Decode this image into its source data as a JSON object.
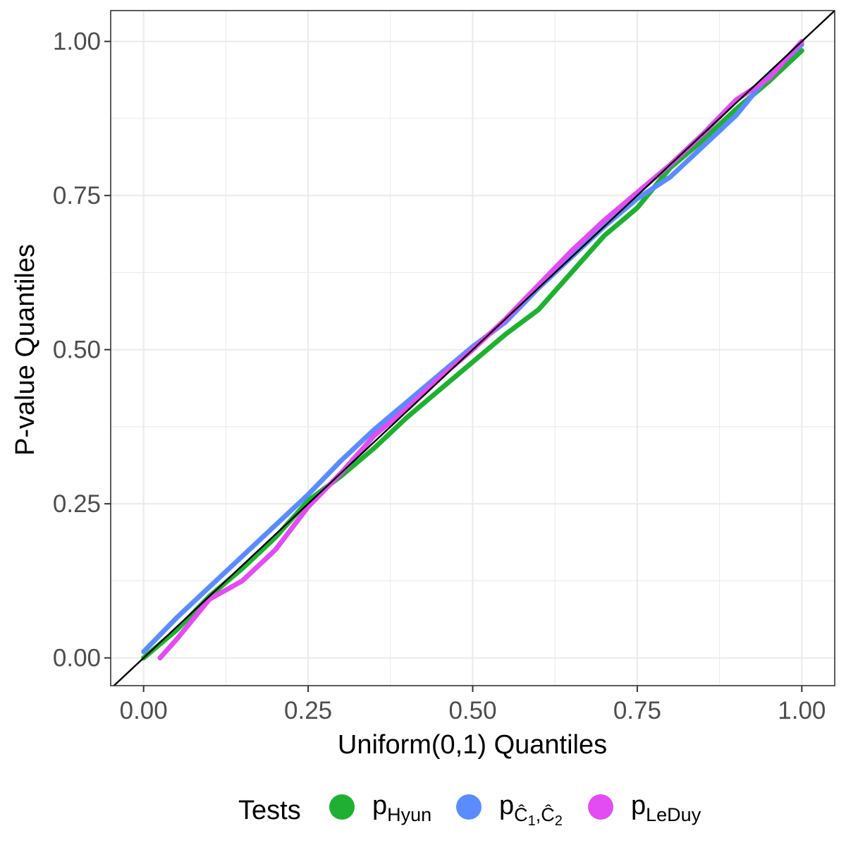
{
  "chart_data": {
    "type": "line",
    "title": "",
    "xlabel": "Uniform(0,1) Quantiles",
    "ylabel": "P-value Quantiles",
    "xlim": [
      -0.05,
      1.05
    ],
    "ylim": [
      -0.045,
      1.05
    ],
    "x_ticks": [
      "0.00",
      "0.25",
      "0.50",
      "0.75",
      "1.00"
    ],
    "y_ticks": [
      "0.00",
      "0.25",
      "0.50",
      "0.75",
      "1.00"
    ],
    "grid": true,
    "reference_line": "y = x",
    "legend": {
      "title": "Tests",
      "placement": "bottom",
      "entries": [
        {
          "base": "p",
          "sub": "Hyun",
          "sub_extra": "",
          "color": "#1fb031"
        },
        {
          "base": "p",
          "sub": "Ĉ",
          "sub_extra": "1",
          "sub2": ",Ĉ",
          "sub_extra2": "2",
          "color": "#5b8cff"
        },
        {
          "base": "p",
          "sub": "LeDuy",
          "sub_extra": "",
          "color": "#e24cf2"
        }
      ]
    },
    "series": [
      {
        "name": "pHyun",
        "color": "#1fb031",
        "points": [
          [
            0.0,
            0.0
          ],
          [
            0.05,
            0.045
          ],
          [
            0.1,
            0.1
          ],
          [
            0.15,
            0.145
          ],
          [
            0.2,
            0.195
          ],
          [
            0.25,
            0.255
          ],
          [
            0.3,
            0.295
          ],
          [
            0.35,
            0.34
          ],
          [
            0.4,
            0.39
          ],
          [
            0.45,
            0.435
          ],
          [
            0.5,
            0.48
          ],
          [
            0.55,
            0.525
          ],
          [
            0.6,
            0.565
          ],
          [
            0.65,
            0.625
          ],
          [
            0.7,
            0.685
          ],
          [
            0.75,
            0.73
          ],
          [
            0.8,
            0.795
          ],
          [
            0.85,
            0.84
          ],
          [
            0.9,
            0.89
          ],
          [
            0.95,
            0.935
          ],
          [
            1.0,
            0.985
          ]
        ]
      },
      {
        "name": "pĈ1,Ĉ2",
        "color": "#5b8cff",
        "points": [
          [
            0.0,
            0.01
          ],
          [
            0.05,
            0.065
          ],
          [
            0.1,
            0.115
          ],
          [
            0.15,
            0.165
          ],
          [
            0.2,
            0.215
          ],
          [
            0.25,
            0.265
          ],
          [
            0.3,
            0.32
          ],
          [
            0.35,
            0.37
          ],
          [
            0.4,
            0.415
          ],
          [
            0.45,
            0.46
          ],
          [
            0.5,
            0.505
          ],
          [
            0.55,
            0.545
          ],
          [
            0.6,
            0.6
          ],
          [
            0.65,
            0.65
          ],
          [
            0.7,
            0.7
          ],
          [
            0.75,
            0.745
          ],
          [
            0.8,
            0.78
          ],
          [
            0.85,
            0.83
          ],
          [
            0.9,
            0.88
          ],
          [
            0.95,
            0.945
          ],
          [
            1.0,
            0.995
          ]
        ]
      },
      {
        "name": "pLeDuy",
        "color": "#e24cf2",
        "points": [
          [
            0.025,
            0.0
          ],
          [
            0.05,
            0.03
          ],
          [
            0.1,
            0.095
          ],
          [
            0.15,
            0.125
          ],
          [
            0.2,
            0.175
          ],
          [
            0.25,
            0.245
          ],
          [
            0.3,
            0.3
          ],
          [
            0.35,
            0.36
          ],
          [
            0.4,
            0.405
          ],
          [
            0.45,
            0.455
          ],
          [
            0.5,
            0.5
          ],
          [
            0.55,
            0.55
          ],
          [
            0.6,
            0.605
          ],
          [
            0.65,
            0.66
          ],
          [
            0.7,
            0.71
          ],
          [
            0.75,
            0.755
          ],
          [
            0.8,
            0.8
          ],
          [
            0.85,
            0.85
          ],
          [
            0.9,
            0.905
          ],
          [
            0.95,
            0.94
          ],
          [
            1.0,
            1.0
          ]
        ]
      }
    ]
  }
}
